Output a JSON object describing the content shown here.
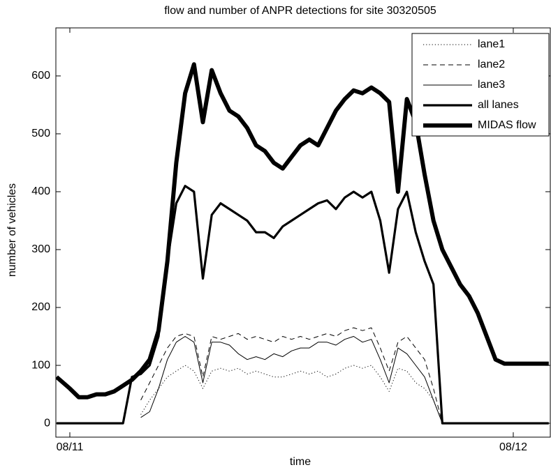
{
  "chart_data": {
    "type": "line",
    "title": "flow and number of ANPR detections for site 30320505",
    "x_label": "time",
    "y_label": "number of vehicles",
    "x": [
      -0.03,
      0,
      0.02,
      0.04,
      0.06,
      0.08,
      0.1,
      0.12,
      0.14,
      0.16,
      0.18,
      0.2,
      0.22,
      0.24,
      0.26,
      0.28,
      0.3,
      0.32,
      0.34,
      0.36,
      0.38,
      0.4,
      0.42,
      0.44,
      0.46,
      0.48,
      0.5,
      0.52,
      0.54,
      0.56,
      0.58,
      0.6,
      0.62,
      0.64,
      0.66,
      0.68,
      0.7,
      0.72,
      0.74,
      0.76,
      0.78,
      0.8,
      0.82,
      0.84,
      0.86,
      0.88,
      0.9,
      0.92,
      0.94,
      0.96,
      0.98,
      1.0,
      1.02,
      1.04,
      1.06,
      1.08
    ],
    "series": [
      {
        "name": "lane1",
        "color": "#000000",
        "linestyle": "dotted",
        "values": [
          null,
          null,
          null,
          null,
          null,
          null,
          null,
          null,
          null,
          15,
          40,
          60,
          80,
          90,
          100,
          90,
          60,
          90,
          95,
          90,
          95,
          85,
          90,
          85,
          80,
          80,
          85,
          90,
          85,
          90,
          80,
          85,
          95,
          100,
          95,
          100,
          80,
          55,
          95,
          90,
          70,
          60,
          40,
          0,
          null,
          null,
          null,
          null,
          null,
          null,
          null,
          null,
          null,
          null,
          null,
          null
        ]
      },
      {
        "name": "lane2",
        "color": "#000000",
        "linestyle": "dashed",
        "values": [
          null,
          null,
          null,
          null,
          null,
          null,
          null,
          null,
          null,
          40,
          70,
          100,
          130,
          150,
          155,
          150,
          80,
          150,
          145,
          150,
          155,
          145,
          150,
          145,
          140,
          150,
          145,
          150,
          145,
          150,
          155,
          150,
          160,
          165,
          160,
          165,
          130,
          90,
          140,
          150,
          130,
          110,
          60,
          0,
          null,
          null,
          null,
          null,
          null,
          null,
          null,
          null,
          null,
          null,
          null,
          null
        ]
      },
      {
        "name": "lane3",
        "color": "#000000",
        "linestyle": "solid",
        "values": [
          null,
          null,
          null,
          null,
          null,
          null,
          null,
          null,
          null,
          10,
          20,
          60,
          110,
          140,
          150,
          140,
          70,
          140,
          140,
          135,
          120,
          110,
          115,
          110,
          120,
          115,
          125,
          130,
          130,
          140,
          140,
          135,
          145,
          150,
          140,
          145,
          110,
          70,
          130,
          120,
          100,
          80,
          40,
          0,
          null,
          null,
          null,
          null,
          null,
          null,
          null,
          null,
          null,
          null,
          null,
          null
        ]
      },
      {
        "name": "all lanes",
        "color": "#000000",
        "linestyle": "thick",
        "values": [
          0,
          0,
          0,
          0,
          0,
          0,
          0,
          0,
          80,
          85,
          100,
          150,
          280,
          380,
          410,
          400,
          250,
          360,
          380,
          370,
          360,
          350,
          330,
          330,
          320,
          340,
          350,
          360,
          370,
          380,
          385,
          370,
          390,
          400,
          390,
          400,
          350,
          260,
          370,
          400,
          330,
          280,
          240,
          0,
          0,
          0,
          0,
          0,
          0,
          0,
          0,
          0,
          0,
          0,
          0,
          0
        ]
      },
      {
        "name": "MIDAS flow",
        "color": "#000000",
        "linestyle": "heavy",
        "values": [
          80,
          60,
          45,
          45,
          50,
          50,
          55,
          65,
          75,
          90,
          110,
          160,
          280,
          450,
          570,
          620,
          520,
          610,
          570,
          540,
          530,
          510,
          480,
          470,
          450,
          440,
          460,
          480,
          490,
          480,
          510,
          540,
          560,
          575,
          570,
          580,
          570,
          555,
          400,
          560,
          520,
          430,
          350,
          300,
          270,
          240,
          220,
          190,
          150,
          110,
          103,
          103,
          103,
          103,
          103,
          103
        ]
      }
    ],
    "xlim": [
      -0.0315,
      1.0835
    ],
    "xticks": [
      {
        "value": 0,
        "label": "08/11"
      },
      {
        "value": 1,
        "label": "08/12"
      }
    ],
    "ylim": [
      -24,
      683
    ],
    "yticks": [
      0,
      100,
      200,
      300,
      400,
      500,
      600
    ],
    "legend": "upper right"
  }
}
